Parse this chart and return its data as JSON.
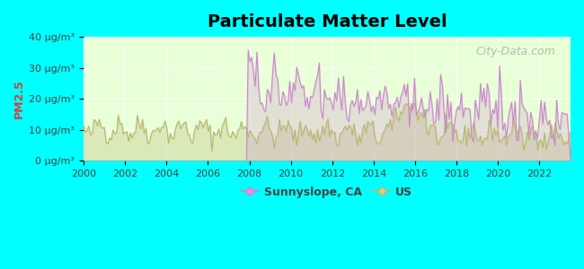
{
  "title": "Particulate Matter Level",
  "ylabel": "PM2.5",
  "xlabel": "",
  "background_color": "#00FFFF",
  "plot_bg_color_top": "#e8ffe8",
  "plot_bg_color_bottom": "#f0ffe0",
  "sunnyslope_color": "#cc88cc",
  "us_color": "#b8b870",
  "ylim": [
    0,
    40
  ],
  "yticks": [
    0,
    10,
    20,
    30,
    40
  ],
  "ytick_labels": [
    "0 μg/m³",
    "10 μg/m³",
    "20 μg/m³",
    "30 μg/m³",
    "40 μg/m³"
  ],
  "xlim_start": 2000,
  "xlim_end": 2023.5,
  "xticks": [
    2000,
    2002,
    2004,
    2006,
    2008,
    2010,
    2012,
    2014,
    2016,
    2018,
    2020,
    2022
  ],
  "sunnyslope_start_year": 2007.9,
  "legend_labels": [
    "Sunnyslope, CA",
    "US"
  ],
  "watermark": "City-Data.com"
}
